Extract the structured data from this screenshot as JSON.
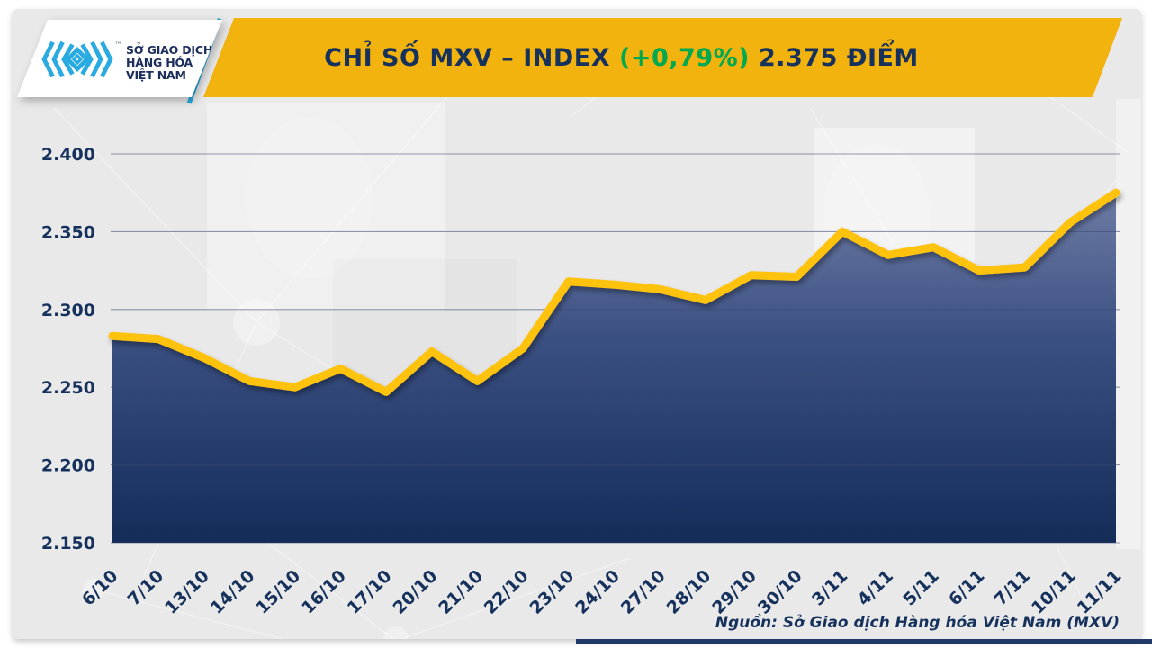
{
  "header": {
    "title_prefix": "CHỈ SỐ MXV – INDEX",
    "change": "(+0,79%)",
    "title_suffix": "2.375 ĐIỂM",
    "banner_color": "#F3B30E",
    "title_color": "#16325C",
    "change_color": "#00A94F"
  },
  "logo": {
    "line1": "SỞ GIAO DỊCH",
    "line2": "HÀNG HÓA",
    "line3": "VIỆT NAM",
    "tm": "™",
    "brand_color": "#29ABE2",
    "text_color": "#1C2E5B"
  },
  "footer": {
    "source": "Nguồn: Sở Giao dịch Hàng hóa Việt Nam (MXV)"
  },
  "chart_data": {
    "type": "area",
    "title": "CHỈ SỐ MXV – INDEX (+0,79%) 2.375 ĐIỂM",
    "xlabel": "",
    "ylabel": "",
    "series_name": "MXV-Index",
    "categories": [
      "6/10",
      "7/10",
      "13/10",
      "14/10",
      "15/10",
      "16/10",
      "17/10",
      "20/10",
      "21/10",
      "22/10",
      "23/10",
      "24/10",
      "27/10",
      "28/10",
      "29/10",
      "30/10",
      "3/11",
      "4/11",
      "5/11",
      "6/11",
      "7/11",
      "10/11",
      "11/11"
    ],
    "values": [
      2283,
      2281,
      2269,
      2254,
      2250,
      2262,
      2247,
      2273,
      2254,
      2275,
      2318,
      2316,
      2313,
      2306,
      2322,
      2321,
      2350,
      2335,
      2340,
      2325,
      2327,
      2356,
      2375
    ],
    "last_value_display": "2.375",
    "change_display": "+0,79%",
    "ylim": [
      2150,
      2400
    ],
    "ytick_step": 50,
    "ytick_labels": [
      "2.150",
      "2.200",
      "2.250",
      "2.300",
      "2.350",
      "2.400"
    ],
    "grid": true,
    "legend": "none",
    "line_color": "#FFC20D",
    "area_top_color": "#6F7DA6",
    "area_mid_color": "#3B5082",
    "area_bottom_color": "#132C58",
    "grid_color": "#3A4A74",
    "label_color": "#16325C"
  }
}
